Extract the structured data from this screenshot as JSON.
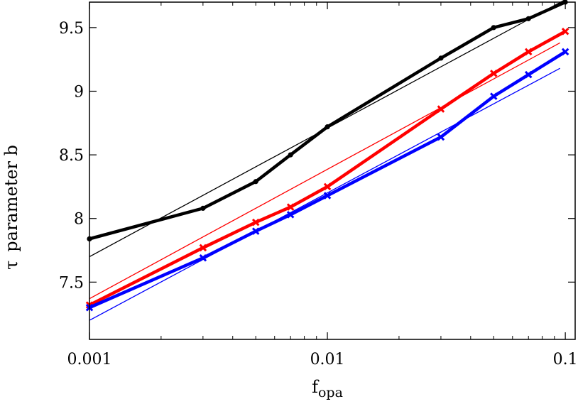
{
  "chart_data": {
    "type": "line",
    "xscale": "log",
    "xlim": [
      0.001,
      0.11
    ],
    "ylim": [
      7.05,
      9.7
    ],
    "xlabel_main": "f",
    "xlabel_sub": "opa",
    "ylabel_symbol": "τ",
    "ylabel_text": "parameter b",
    "xticks": [
      0.001,
      0.01,
      0.1
    ],
    "xtick_labels": [
      "0.001",
      "0.01",
      "0.1"
    ],
    "yticks": [
      7.5,
      8,
      8.5,
      9,
      9.5
    ],
    "ytick_labels": [
      "7.5",
      "8",
      "8.5",
      "9",
      "9.5"
    ],
    "grid": false,
    "legend": "none",
    "series": [
      {
        "color": "#000000",
        "marker": "circle",
        "x": [
          0.001,
          0.003,
          0.005,
          0.007,
          0.01,
          0.03,
          0.05,
          0.07,
          0.1
        ],
        "y": [
          7.84,
          8.08,
          8.29,
          8.5,
          8.72,
          9.26,
          9.5,
          9.57,
          9.7
        ]
      },
      {
        "color": "#ff0000",
        "marker": "cross",
        "x": [
          0.001,
          0.003,
          0.005,
          0.007,
          0.01,
          0.03,
          0.05,
          0.07,
          0.1
        ],
        "y": [
          7.32,
          7.77,
          7.97,
          8.09,
          8.25,
          8.86,
          9.14,
          9.31,
          9.47
        ]
      },
      {
        "color": "#0000ff",
        "marker": "cross",
        "x": [
          0.001,
          0.003,
          0.005,
          0.007,
          0.01,
          0.03,
          0.05,
          0.07,
          0.1
        ],
        "y": [
          7.3,
          7.69,
          7.9,
          8.03,
          8.18,
          8.64,
          8.96,
          9.13,
          9.31
        ]
      }
    ],
    "fit_lines": [
      {
        "color": "#000000",
        "x": [
          0.001,
          0.1
        ],
        "y": [
          7.7,
          9.72
        ]
      },
      {
        "color": "#ff0000",
        "x": [
          0.001,
          0.095
        ],
        "y": [
          7.37,
          9.38
        ]
      },
      {
        "color": "#0000ff",
        "x": [
          0.001,
          0.095
        ],
        "y": [
          7.2,
          9.18
        ]
      }
    ]
  }
}
